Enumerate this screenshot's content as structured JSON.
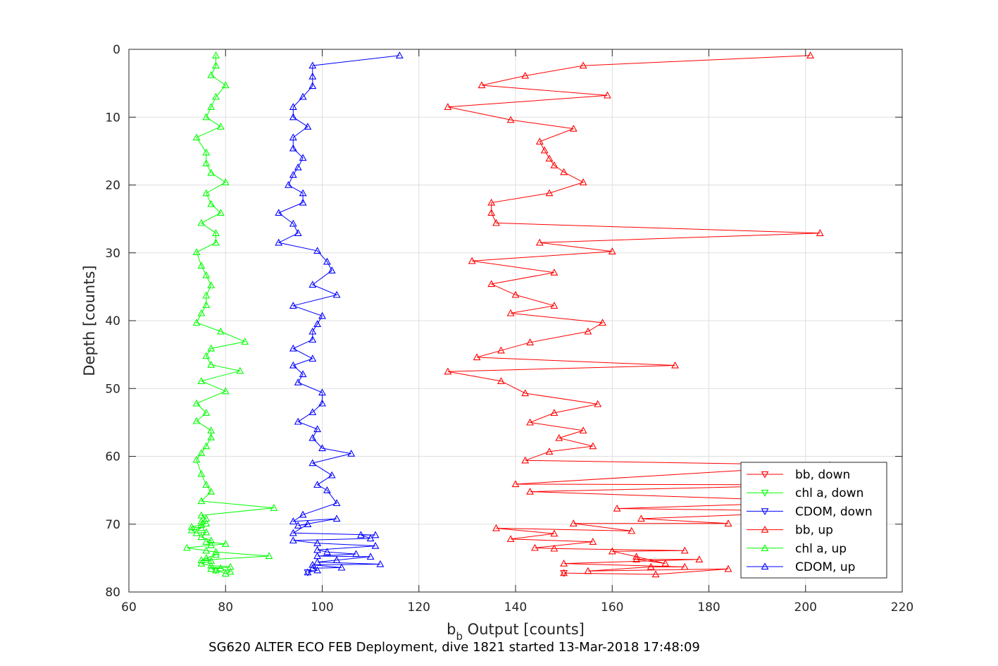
{
  "chart_data": {
    "type": "line",
    "xlabel_main": "b",
    "xlabel_sub": "b",
    "xlabel_rest": " Output [counts]",
    "ylabel": "Depth [counts]",
    "caption": "SG620 ALTER ECO FEB Deployment, dive 1821 started 13-Mar-2018 17:48:09",
    "xlim": [
      60,
      220
    ],
    "ylim": [
      0,
      80
    ],
    "y_reversed": true,
    "x_ticks": [
      "60",
      "80",
      "100",
      "120",
      "140",
      "160",
      "180",
      "200",
      "220"
    ],
    "y_ticks": [
      "0",
      "10",
      "20",
      "30",
      "40",
      "50",
      "60",
      "70",
      "80"
    ],
    "grid": true,
    "legend_position": "bottom-right",
    "series": [
      {
        "name": "bb, down",
        "color": "#ff0000",
        "marker": "triangle-down",
        "points": [
          [
            150,
            77.2
          ]
        ]
      },
      {
        "name": "chl a, down",
        "color": "#00ff00",
        "marker": "triangle-down",
        "points": [
          [
            78,
            76.8
          ]
        ]
      },
      {
        "name": "CDOM, down",
        "color": "#0000ff",
        "marker": "triangle-down",
        "points": [
          [
            97,
            77.1
          ]
        ]
      },
      {
        "name": "bb, up",
        "color": "#ff0000",
        "marker": "triangle-up",
        "points": [
          [
            150,
            77.2
          ],
          [
            169,
            77.4
          ],
          [
            184,
            76.6
          ],
          [
            155,
            76.9
          ],
          [
            168,
            76.3
          ],
          [
            175,
            76.3
          ],
          [
            150,
            75.8
          ],
          [
            178,
            75.2
          ],
          [
            165,
            75.2
          ],
          [
            171,
            75.8
          ],
          [
            165,
            74.8
          ],
          [
            160,
            74.0
          ],
          [
            175,
            73.9
          ],
          [
            148,
            73.6
          ],
          [
            144,
            73.5
          ],
          [
            156,
            72.6
          ],
          [
            139,
            72.2
          ],
          [
            148,
            71.4
          ],
          [
            136,
            70.6
          ],
          [
            164,
            71.0
          ],
          [
            152,
            69.9
          ],
          [
            184,
            69.9
          ],
          [
            166,
            69.2
          ],
          [
            205,
            68.1
          ],
          [
            161,
            67.7
          ],
          [
            205,
            66.7
          ],
          [
            143,
            65.2
          ],
          [
            205,
            64.2
          ],
          [
            140,
            64.1
          ],
          [
            205,
            61.3
          ],
          [
            142,
            60.6
          ],
          [
            147,
            59.3
          ],
          [
            156,
            58.5
          ],
          [
            149,
            57.3
          ],
          [
            154,
            56.2
          ],
          [
            143,
            55.0
          ],
          [
            148,
            53.6
          ],
          [
            157,
            52.3
          ],
          [
            142,
            50.7
          ],
          [
            137,
            48.9
          ],
          [
            126,
            47.5
          ],
          [
            173,
            46.6
          ],
          [
            132,
            45.4
          ],
          [
            137,
            44.4
          ],
          [
            143,
            43.2
          ],
          [
            155,
            41.6
          ],
          [
            158,
            40.3
          ],
          [
            139,
            38.9
          ],
          [
            148,
            37.8
          ],
          [
            140,
            36.2
          ],
          [
            135,
            34.6
          ],
          [
            148,
            32.9
          ],
          [
            131,
            31.2
          ],
          [
            160,
            29.8
          ],
          [
            145,
            28.5
          ],
          [
            203,
            27.1
          ],
          [
            136,
            25.6
          ],
          [
            135,
            24.1
          ],
          [
            135,
            22.6
          ],
          [
            147,
            21.2
          ],
          [
            154,
            19.6
          ],
          [
            150,
            18.1
          ],
          [
            148,
            17.1
          ],
          [
            147,
            16.1
          ],
          [
            146,
            14.9
          ],
          [
            145,
            13.6
          ],
          [
            152,
            11.7
          ],
          [
            139,
            10.4
          ],
          [
            126,
            8.5
          ],
          [
            159,
            6.8
          ],
          [
            133,
            5.3
          ],
          [
            142,
            3.9
          ],
          [
            154,
            2.4
          ],
          [
            201,
            0.9
          ]
        ]
      },
      {
        "name": "chl a, up",
        "color": "#00ff00",
        "marker": "triangle-up",
        "points": [
          [
            78,
            76.8
          ],
          [
            80,
            77.3
          ],
          [
            81,
            77.0
          ],
          [
            79,
            76.5
          ],
          [
            77,
            76.6
          ],
          [
            81,
            76.3
          ],
          [
            77,
            76.1
          ],
          [
            75,
            75.8
          ],
          [
            77,
            75.4
          ],
          [
            76,
            75.0
          ],
          [
            78,
            74.5
          ],
          [
            75,
            75.3
          ],
          [
            89,
            74.7
          ],
          [
            78,
            74.1
          ],
          [
            76,
            73.9
          ],
          [
            72,
            73.5
          ],
          [
            77,
            73.1
          ],
          [
            80,
            72.9
          ],
          [
            76,
            72.6
          ],
          [
            77,
            72.4
          ],
          [
            75,
            71.9
          ],
          [
            76,
            71.2
          ],
          [
            74,
            71.3
          ],
          [
            73,
            70.9
          ],
          [
            75,
            70.6
          ],
          [
            73,
            70.4
          ],
          [
            75,
            70.1
          ],
          [
            76,
            69.9
          ],
          [
            75,
            69.6
          ],
          [
            76,
            69.2
          ],
          [
            75,
            68.7
          ],
          [
            90,
            67.6
          ],
          [
            75,
            66.6
          ],
          [
            77,
            65.2
          ],
          [
            76,
            64.2
          ],
          [
            75,
            62.6
          ],
          [
            74,
            60.5
          ],
          [
            75,
            59.5
          ],
          [
            76,
            58.5
          ],
          [
            77,
            57.2
          ],
          [
            77,
            56.2
          ],
          [
            74,
            54.8
          ],
          [
            76,
            53.6
          ],
          [
            74,
            52.2
          ],
          [
            80,
            50.4
          ],
          [
            75,
            48.9
          ],
          [
            83,
            47.4
          ],
          [
            77,
            46.5
          ],
          [
            76,
            45.2
          ],
          [
            77,
            44.1
          ],
          [
            84,
            43.1
          ],
          [
            79,
            41.6
          ],
          [
            74,
            40.3
          ],
          [
            75,
            38.9
          ],
          [
            76,
            37.7
          ],
          [
            76,
            36.3
          ],
          [
            77,
            34.8
          ],
          [
            76,
            33.3
          ],
          [
            75,
            31.9
          ],
          [
            74,
            29.9
          ],
          [
            78,
            28.5
          ],
          [
            78,
            27.1
          ],
          [
            75,
            25.6
          ],
          [
            79,
            24.1
          ],
          [
            77,
            22.8
          ],
          [
            76,
            21.2
          ],
          [
            80,
            19.6
          ],
          [
            77,
            18.2
          ],
          [
            76,
            16.8
          ],
          [
            76,
            15.2
          ],
          [
            74,
            13.0
          ],
          [
            79,
            11.4
          ],
          [
            76,
            10.0
          ],
          [
            77,
            8.5
          ],
          [
            78,
            7.0
          ],
          [
            80,
            5.3
          ],
          [
            77,
            3.8
          ],
          [
            78,
            2.4
          ],
          [
            78,
            0.9
          ]
        ]
      },
      {
        "name": "CDOM, up",
        "color": "#0000ff",
        "marker": "triangle-up",
        "points": [
          [
            97,
            77.1
          ],
          [
            99,
            76.8
          ],
          [
            98,
            76.5
          ],
          [
            104,
            76.4
          ],
          [
            98,
            76.0
          ],
          [
            112,
            75.9
          ],
          [
            99,
            75.6
          ],
          [
            103,
            75.3
          ],
          [
            110,
            74.8
          ],
          [
            99,
            74.7
          ],
          [
            107,
            74.4
          ],
          [
            101,
            74.1
          ],
          [
            99,
            73.8
          ],
          [
            111,
            73.2
          ],
          [
            99,
            72.8
          ],
          [
            94,
            72.4
          ],
          [
            110,
            72.1
          ],
          [
            108,
            71.6
          ],
          [
            111,
            71.6
          ],
          [
            94,
            71.3
          ],
          [
            97,
            70.0
          ],
          [
            95,
            70.2
          ],
          [
            103,
            69.2
          ],
          [
            94,
            69.6
          ],
          [
            96,
            68.6
          ],
          [
            103,
            66.9
          ],
          [
            101,
            65.0
          ],
          [
            99,
            64.2
          ],
          [
            102,
            62.8
          ],
          [
            98,
            61.0
          ],
          [
            106,
            59.6
          ],
          [
            100,
            58.8
          ],
          [
            98,
            57.3
          ],
          [
            99,
            56.0
          ],
          [
            95,
            54.9
          ],
          [
            98,
            53.5
          ],
          [
            100,
            52.2
          ],
          [
            100,
            50.6
          ],
          [
            95,
            49.1
          ],
          [
            96,
            47.9
          ],
          [
            94,
            46.6
          ],
          [
            98,
            45.6
          ],
          [
            94,
            44.1
          ],
          [
            98,
            42.8
          ],
          [
            98,
            41.6
          ],
          [
            99,
            40.5
          ],
          [
            100,
            39.3
          ],
          [
            94,
            37.8
          ],
          [
            103,
            36.2
          ],
          [
            98,
            34.7
          ],
          [
            102,
            32.6
          ],
          [
            101,
            31.3
          ],
          [
            99,
            29.7
          ],
          [
            91,
            28.5
          ],
          [
            95,
            27.1
          ],
          [
            94,
            25.7
          ],
          [
            91,
            24.1
          ],
          [
            96,
            22.6
          ],
          [
            96,
            21.2
          ],
          [
            93,
            20.0
          ],
          [
            94,
            18.5
          ],
          [
            95,
            17.4
          ],
          [
            96,
            16.0
          ],
          [
            94,
            14.6
          ],
          [
            94,
            13.0
          ],
          [
            97,
            11.4
          ],
          [
            94,
            10.0
          ],
          [
            94,
            8.5
          ],
          [
            96,
            7.0
          ],
          [
            98,
            5.4
          ],
          [
            98,
            4.0
          ],
          [
            98,
            2.4
          ],
          [
            116,
            0.9
          ]
        ]
      }
    ]
  }
}
